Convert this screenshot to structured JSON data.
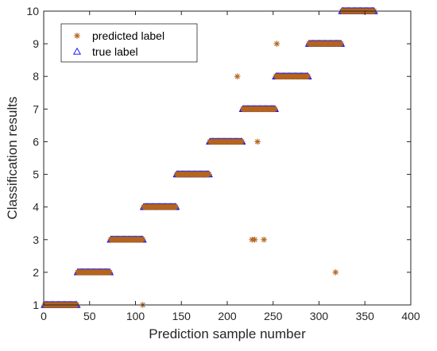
{
  "chart_data": {
    "type": "scatter",
    "title": "",
    "xlabel": "Prediction sample number",
    "ylabel": "Classification results",
    "xlim": [
      0,
      400
    ],
    "ylim": [
      1,
      10
    ],
    "xticks": [
      0,
      50,
      100,
      150,
      200,
      250,
      300,
      350,
      400
    ],
    "yticks": [
      1,
      2,
      3,
      4,
      5,
      6,
      7,
      8,
      9,
      10
    ],
    "grid": false,
    "legend_position": "top-left",
    "series": [
      {
        "name": "predicted label",
        "marker": "asterisk",
        "color": "#b5651d",
        "runs": [
          {
            "y": 1,
            "x_start": 1,
            "x_end": 36
          },
          {
            "y": 2,
            "x_start": 37,
            "x_end": 72
          },
          {
            "y": 3,
            "x_start": 73,
            "x_end": 108
          },
          {
            "y": 4,
            "x_start": 109,
            "x_end": 144
          },
          {
            "y": 5,
            "x_start": 145,
            "x_end": 180
          },
          {
            "y": 6,
            "x_start": 181,
            "x_end": 216
          },
          {
            "y": 7,
            "x_start": 217,
            "x_end": 252
          },
          {
            "y": 8,
            "x_start": 253,
            "x_end": 288
          },
          {
            "y": 9,
            "x_start": 289,
            "x_end": 324
          },
          {
            "y": 10,
            "x_start": 325,
            "x_end": 360
          }
        ],
        "points": [
          {
            "x": 108,
            "y": 1
          },
          {
            "x": 211,
            "y": 8
          },
          {
            "x": 227,
            "y": 3
          },
          {
            "x": 230,
            "y": 3
          },
          {
            "x": 233,
            "y": 6
          },
          {
            "x": 240,
            "y": 3
          },
          {
            "x": 254,
            "y": 9
          },
          {
            "x": 318,
            "y": 2
          }
        ]
      },
      {
        "name": "true label",
        "marker": "triangle",
        "color": "#0000ff",
        "runs": [
          {
            "y": 1,
            "x_start": 1,
            "x_end": 36
          },
          {
            "y": 2,
            "x_start": 37,
            "x_end": 72
          },
          {
            "y": 3,
            "x_start": 73,
            "x_end": 108
          },
          {
            "y": 4,
            "x_start": 109,
            "x_end": 144
          },
          {
            "y": 5,
            "x_start": 145,
            "x_end": 180
          },
          {
            "y": 6,
            "x_start": 181,
            "x_end": 216
          },
          {
            "y": 7,
            "x_start": 217,
            "x_end": 252
          },
          {
            "y": 8,
            "x_start": 253,
            "x_end": 288
          },
          {
            "y": 9,
            "x_start": 289,
            "x_end": 324
          },
          {
            "y": 10,
            "x_start": 325,
            "x_end": 360
          }
        ]
      }
    ]
  }
}
